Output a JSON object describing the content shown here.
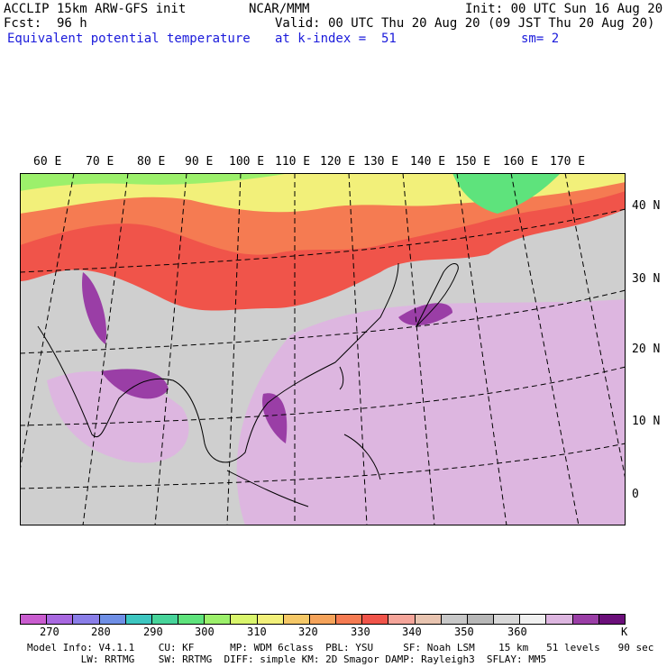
{
  "header": {
    "title_left": "ACCLIP 15km ARW-GFS init",
    "center": "NCAR/MMM",
    "init": "Init: 00 UTC Sun 16 Aug 20",
    "fcst": "Fcst:  96 h",
    "valid": "Valid: 00 UTC Thu 20 Aug 20 (09 JST Thu 20 Aug 20)",
    "field_name": "Equivalent potential temperature",
    "level": "at k-index =  51",
    "smoothing": "sm= 2"
  },
  "map": {
    "lon_labels": [
      "60 E",
      "70 E",
      "80 E",
      "90 E",
      "100 E",
      "110 E",
      "120 E",
      "130 E",
      "140 E",
      "150 E",
      "160 E",
      "170 E"
    ],
    "lat_labels": [
      "40 N",
      "30 N",
      "20 N",
      "10 N",
      "0"
    ]
  },
  "colorbar": {
    "colors": [
      "#c95ccf",
      "#a868e0",
      "#8a7ee8",
      "#6f8fe6",
      "#3dc6c0",
      "#47d49a",
      "#5ee37c",
      "#9cf06b",
      "#d9f56c",
      "#f2f07a",
      "#f5c867",
      "#f5a35a",
      "#f57b52",
      "#f0544a",
      "#f5a59a",
      "#e8c4b0",
      "#c8c8c8",
      "#b7b7b7",
      "#d8d8d8",
      "#f0f0f0",
      "#ddb6e0",
      "#9a3ea6",
      "#6b0f7a"
    ],
    "ticks": [
      "270",
      "280",
      "290",
      "300",
      "310",
      "320",
      "330",
      "340",
      "350",
      "360"
    ],
    "unit": "K"
  },
  "footer": {
    "line1": "Model Info: V4.1.1    CU: KF      MP: WDM 6class  PBL: YSU     SF: Noah LSM    15 km   51 levels   90 sec",
    "line2": "         LW: RRTMG    SW: RRTMG  DIFF: simple KM: 2D Smagor DAMP: Rayleigh3  SFLAY: MM5"
  }
}
